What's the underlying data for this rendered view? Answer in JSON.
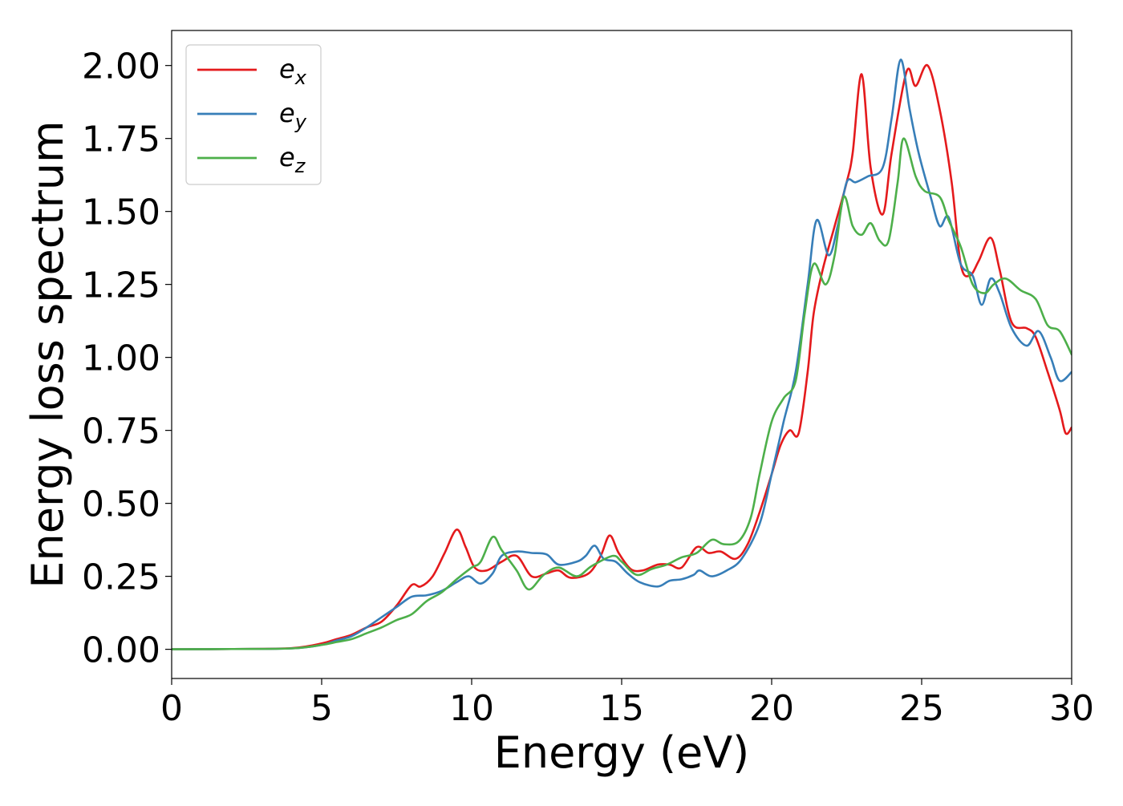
{
  "chart_data": {
    "type": "line",
    "title": "",
    "xlabel": "Energy (eV)",
    "ylabel": "Energy loss spectrum",
    "xlim": [
      0,
      30
    ],
    "ylim": [
      -0.1,
      2.12
    ],
    "xticks": [
      0,
      5,
      10,
      15,
      20,
      25,
      30
    ],
    "xtick_labels": [
      "0",
      "5",
      "10",
      "15",
      "20",
      "25",
      "30"
    ],
    "yticks": [
      0,
      0.25,
      0.5,
      0.75,
      1.0,
      1.25,
      1.5,
      1.75,
      2.0
    ],
    "ytick_labels": [
      "0.00",
      "0.25",
      "0.50",
      "0.75",
      "1.00",
      "1.25",
      "1.50",
      "1.75",
      "2.00"
    ],
    "grid": false,
    "legend_position": "top-left",
    "series": [
      {
        "name": "e",
        "subscript": "x",
        "color": "#e41a1c",
        "points": [
          [
            0,
            0
          ],
          [
            2,
            0.001
          ],
          [
            4,
            0.004
          ],
          [
            5,
            0.02
          ],
          [
            5.5,
            0.035
          ],
          [
            6,
            0.05
          ],
          [
            6.5,
            0.075
          ],
          [
            7,
            0.095
          ],
          [
            7.5,
            0.15
          ],
          [
            8,
            0.22
          ],
          [
            8.3,
            0.215
          ],
          [
            8.7,
            0.25
          ],
          [
            9.1,
            0.33
          ],
          [
            9.5,
            0.41
          ],
          [
            9.8,
            0.35
          ],
          [
            10.1,
            0.28
          ],
          [
            10.5,
            0.27
          ],
          [
            11,
            0.3
          ],
          [
            11.5,
            0.32
          ],
          [
            12,
            0.25
          ],
          [
            12.5,
            0.26
          ],
          [
            12.9,
            0.27
          ],
          [
            13.3,
            0.245
          ],
          [
            13.9,
            0.26
          ],
          [
            14.3,
            0.32
          ],
          [
            14.6,
            0.39
          ],
          [
            14.9,
            0.33
          ],
          [
            15.3,
            0.275
          ],
          [
            15.7,
            0.27
          ],
          [
            16.2,
            0.29
          ],
          [
            16.6,
            0.29
          ],
          [
            17,
            0.28
          ],
          [
            17.5,
            0.35
          ],
          [
            17.9,
            0.33
          ],
          [
            18.3,
            0.335
          ],
          [
            18.8,
            0.31
          ],
          [
            19.2,
            0.36
          ],
          [
            19.6,
            0.47
          ],
          [
            20,
            0.6
          ],
          [
            20.3,
            0.7
          ],
          [
            20.6,
            0.75
          ],
          [
            20.9,
            0.74
          ],
          [
            21.2,
            0.95
          ],
          [
            21.4,
            1.15
          ],
          [
            21.7,
            1.3
          ],
          [
            22.1,
            1.45
          ],
          [
            22.5,
            1.6
          ],
          [
            22.7,
            1.7
          ],
          [
            23,
            1.97
          ],
          [
            23.3,
            1.65
          ],
          [
            23.7,
            1.49
          ],
          [
            24,
            1.7
          ],
          [
            24.5,
            1.98
          ],
          [
            24.8,
            1.93
          ],
          [
            25.2,
            2.0
          ],
          [
            25.6,
            1.85
          ],
          [
            26,
            1.6
          ],
          [
            26.3,
            1.32
          ],
          [
            26.6,
            1.28
          ],
          [
            26.9,
            1.33
          ],
          [
            27.3,
            1.41
          ],
          [
            27.6,
            1.3
          ],
          [
            28,
            1.12
          ],
          [
            28.5,
            1.1
          ],
          [
            28.8,
            1.07
          ],
          [
            29.2,
            0.95
          ],
          [
            29.6,
            0.82
          ],
          [
            29.8,
            0.74
          ],
          [
            30,
            0.76
          ]
        ]
      },
      {
        "name": "e",
        "subscript": "y",
        "color": "#377eb8",
        "points": [
          [
            0,
            0
          ],
          [
            2,
            0.001
          ],
          [
            4,
            0.003
          ],
          [
            5,
            0.015
          ],
          [
            5.5,
            0.03
          ],
          [
            6,
            0.045
          ],
          [
            6.5,
            0.075
          ],
          [
            7,
            0.11
          ],
          [
            7.5,
            0.145
          ],
          [
            8,
            0.18
          ],
          [
            8.5,
            0.185
          ],
          [
            9,
            0.2
          ],
          [
            9.5,
            0.23
          ],
          [
            9.9,
            0.25
          ],
          [
            10.3,
            0.225
          ],
          [
            10.7,
            0.26
          ],
          [
            11,
            0.32
          ],
          [
            11.5,
            0.335
          ],
          [
            12,
            0.33
          ],
          [
            12.5,
            0.325
          ],
          [
            12.9,
            0.29
          ],
          [
            13.5,
            0.3
          ],
          [
            13.8,
            0.32
          ],
          [
            14.1,
            0.355
          ],
          [
            14.4,
            0.31
          ],
          [
            14.8,
            0.3
          ],
          [
            15.2,
            0.26
          ],
          [
            15.6,
            0.23
          ],
          [
            16.2,
            0.215
          ],
          [
            16.6,
            0.235
          ],
          [
            17,
            0.24
          ],
          [
            17.4,
            0.255
          ],
          [
            17.6,
            0.27
          ],
          [
            18,
            0.25
          ],
          [
            18.5,
            0.27
          ],
          [
            19,
            0.31
          ],
          [
            19.6,
            0.43
          ],
          [
            20,
            0.6
          ],
          [
            20.4,
            0.78
          ],
          [
            20.8,
            0.95
          ],
          [
            21.2,
            1.25
          ],
          [
            21.5,
            1.47
          ],
          [
            21.9,
            1.35
          ],
          [
            22.2,
            1.45
          ],
          [
            22.5,
            1.6
          ],
          [
            22.8,
            1.6
          ],
          [
            23.2,
            1.62
          ],
          [
            23.7,
            1.65
          ],
          [
            24,
            1.82
          ],
          [
            24.3,
            2.02
          ],
          [
            24.6,
            1.85
          ],
          [
            24.9,
            1.7
          ],
          [
            25.3,
            1.55
          ],
          [
            25.6,
            1.45
          ],
          [
            25.9,
            1.48
          ],
          [
            26.3,
            1.32
          ],
          [
            26.7,
            1.28
          ],
          [
            27,
            1.18
          ],
          [
            27.3,
            1.27
          ],
          [
            27.6,
            1.22
          ],
          [
            28,
            1.1
          ],
          [
            28.5,
            1.04
          ],
          [
            28.9,
            1.09
          ],
          [
            29.3,
            1.0
          ],
          [
            29.6,
            0.92
          ],
          [
            30,
            0.95
          ]
        ]
      },
      {
        "name": "e",
        "subscript": "z",
        "color": "#4daf4a",
        "points": [
          [
            0,
            0
          ],
          [
            2,
            0.001
          ],
          [
            4,
            0.003
          ],
          [
            5,
            0.015
          ],
          [
            5.5,
            0.025
          ],
          [
            6,
            0.035
          ],
          [
            6.5,
            0.055
          ],
          [
            7,
            0.075
          ],
          [
            7.5,
            0.1
          ],
          [
            8,
            0.12
          ],
          [
            8.5,
            0.165
          ],
          [
            9,
            0.195
          ],
          [
            9.5,
            0.24
          ],
          [
            10,
            0.28
          ],
          [
            10.3,
            0.3
          ],
          [
            10.7,
            0.385
          ],
          [
            11,
            0.34
          ],
          [
            11.5,
            0.27
          ],
          [
            11.9,
            0.205
          ],
          [
            12.4,
            0.255
          ],
          [
            12.9,
            0.28
          ],
          [
            13.5,
            0.25
          ],
          [
            14,
            0.285
          ],
          [
            14.7,
            0.32
          ],
          [
            15,
            0.3
          ],
          [
            15.5,
            0.255
          ],
          [
            16,
            0.275
          ],
          [
            16.5,
            0.29
          ],
          [
            17,
            0.315
          ],
          [
            17.5,
            0.33
          ],
          [
            18,
            0.375
          ],
          [
            18.4,
            0.36
          ],
          [
            18.9,
            0.37
          ],
          [
            19.3,
            0.45
          ],
          [
            19.6,
            0.6
          ],
          [
            20,
            0.78
          ],
          [
            20.4,
            0.86
          ],
          [
            20.8,
            0.92
          ],
          [
            21.1,
            1.15
          ],
          [
            21.4,
            1.32
          ],
          [
            21.8,
            1.25
          ],
          [
            22.1,
            1.35
          ],
          [
            22.4,
            1.55
          ],
          [
            22.7,
            1.45
          ],
          [
            23,
            1.42
          ],
          [
            23.3,
            1.46
          ],
          [
            23.6,
            1.4
          ],
          [
            23.9,
            1.4
          ],
          [
            24.2,
            1.6
          ],
          [
            24.4,
            1.75
          ],
          [
            24.8,
            1.62
          ],
          [
            25.1,
            1.57
          ],
          [
            25.6,
            1.55
          ],
          [
            25.9,
            1.47
          ],
          [
            26.3,
            1.38
          ],
          [
            26.7,
            1.25
          ],
          [
            27.1,
            1.22
          ],
          [
            27.4,
            1.25
          ],
          [
            27.8,
            1.27
          ],
          [
            28.3,
            1.23
          ],
          [
            28.8,
            1.2
          ],
          [
            29.2,
            1.11
          ],
          [
            29.6,
            1.09
          ],
          [
            30,
            1.01
          ]
        ]
      }
    ]
  }
}
